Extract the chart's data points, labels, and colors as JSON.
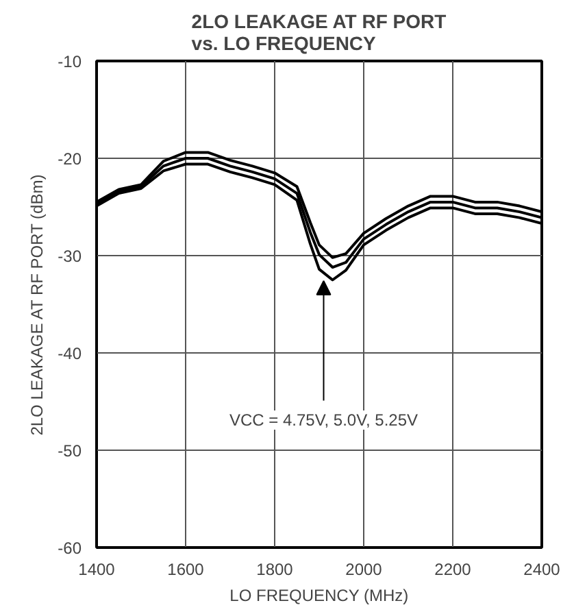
{
  "chart_data": {
    "type": "line",
    "title": "2LO LEAKAGE AT RF PORT\nvs. LO FREQUENCY",
    "xlabel": "LO FREQUENCY (MHz)",
    "ylabel": "2LO LEAKAGE AT RF PORT (dBm)",
    "x": [
      1400,
      1450,
      1500,
      1550,
      1600,
      1650,
      1700,
      1750,
      1800,
      1850,
      1880,
      1900,
      1930,
      1960,
      2000,
      2050,
      2100,
      2150,
      2200,
      2250,
      2300,
      2350,
      2400
    ],
    "series": [
      {
        "color": "#000000",
        "values": [
          -24.5,
          -23.2,
          -22.7,
          -20.3,
          -19.4,
          -19.4,
          -20.2,
          -20.8,
          -21.5,
          -22.9,
          -26.6,
          -28.9,
          -30.2,
          -29.8,
          -27.7,
          -26.2,
          -24.9,
          -23.9,
          -23.9,
          -24.5,
          -24.5,
          -24.9,
          -25.5
        ]
      },
      {
        "color": "#000000",
        "values": [
          -24.7,
          -23.4,
          -22.9,
          -20.8,
          -20.0,
          -20.0,
          -20.8,
          -21.4,
          -22.1,
          -23.6,
          -27.6,
          -29.9,
          -31.2,
          -30.7,
          -28.3,
          -26.8,
          -25.5,
          -24.5,
          -24.5,
          -25.1,
          -25.1,
          -25.5,
          -26.1
        ]
      },
      {
        "color": "#000000",
        "values": [
          -24.9,
          -23.6,
          -23.1,
          -21.3,
          -20.6,
          -20.6,
          -21.4,
          -22.0,
          -22.7,
          -24.3,
          -28.8,
          -31.4,
          -32.5,
          -31.5,
          -28.9,
          -27.4,
          -26.1,
          -25.1,
          -25.1,
          -25.7,
          -25.7,
          -26.1,
          -26.7
        ]
      }
    ],
    "xlim": [
      1400,
      2400
    ],
    "xticks": [
      1400,
      1600,
      1800,
      2000,
      2200,
      2400
    ],
    "ylim": [
      -60,
      -10
    ],
    "yticks": [
      -60,
      -50,
      -40,
      -30,
      -20,
      -10
    ],
    "grid": true,
    "line_style": "solid",
    "marker": "none",
    "annotations": [
      {
        "text": "VCC = 4.75V, 5.0V, 5.25V",
        "x": 1910,
        "y": -32.4
      }
    ]
  }
}
